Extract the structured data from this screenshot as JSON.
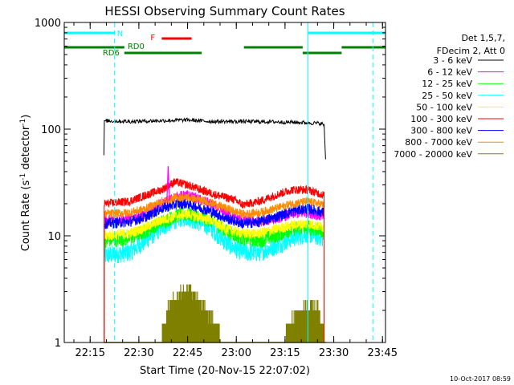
{
  "chart_data": {
    "type": "line",
    "title": "HESSI Observing Summary Count Rates",
    "xlabel": "Start Time (20-Nov-15 22:07:02)",
    "ylabel_main": "Count Rate (s",
    "ylabel_sup1": "-1",
    "ylabel_mid": " detector",
    "ylabel_sup2": "-1",
    "ylabel_end": ")",
    "y_scale": "log",
    "ylim": [
      1,
      1000
    ],
    "xlim_minutes": [
      0,
      98.9
    ],
    "x_ticks": [
      {
        "label": "22:15",
        "minute": 7.97
      },
      {
        "label": "22:30",
        "minute": 22.97
      },
      {
        "label": "22:45",
        "minute": 37.97
      },
      {
        "label": "23:00",
        "minute": 52.97
      },
      {
        "label": "23:15",
        "minute": 67.97
      },
      {
        "label": "23:30",
        "minute": 82.97
      },
      {
        "label": "23:45",
        "minute": 97.97
      }
    ],
    "y_ticks": [
      {
        "label": "1",
        "value": 1
      },
      {
        "label": "10",
        "value": 10
      },
      {
        "label": "100",
        "value": 100
      },
      {
        "label": "1000",
        "value": 1000
      }
    ],
    "legend": {
      "header": [
        "Det 1,5,7,",
        "FDecim 2, Att 0"
      ],
      "placement": "right",
      "entries": [
        {
          "label": "3 - 6 keV",
          "color": "#000000"
        },
        {
          "label": "6 - 12 keV",
          "color": "#ff00ff"
        },
        {
          "label": "12 - 25 keV",
          "color": "#00ff00"
        },
        {
          "label": "25 - 50 keV",
          "color": "#00ffff"
        },
        {
          "label": "50 - 100 keV",
          "color": "#ffff00"
        },
        {
          "label": "100 - 300 keV",
          "color": "#ff0000"
        },
        {
          "label": "300 - 800 keV",
          "color": "#0000ff"
        },
        {
          "label": "800 - 7000 keV",
          "color": "#ff8c00"
        },
        {
          "label": "7000 - 20000 keV",
          "color": "#808000"
        }
      ]
    },
    "night_boundaries_minutes": [
      {
        "minute": 15.5,
        "style": "dashed",
        "color": "#00ffff"
      },
      {
        "minute": 75.0,
        "style": "solid",
        "color": "#00ffff"
      },
      {
        "minute": 95.0,
        "style": "dashed",
        "color": "#00ffff"
      }
    ],
    "flag_bars": [
      {
        "label": "N",
        "color": "#00ffff",
        "level": 1,
        "segments": [
          [
            0,
            15.5
          ],
          [
            75.0,
            98.9
          ]
        ]
      },
      {
        "label": "F",
        "color": "#ff0000",
        "level": 2,
        "segments": [
          [
            30.0,
            39.2
          ]
        ]
      },
      {
        "label": "RD0",
        "color": "#008000",
        "level": 3,
        "segments": [
          [
            0,
            18.5
          ],
          [
            55.3,
            73.4
          ],
          [
            85.4,
            98.9
          ]
        ]
      },
      {
        "label": "RD6",
        "color": "#008000",
        "level": 4,
        "segments": [
          [
            18.5,
            42.3
          ],
          [
            73.4,
            85.4
          ]
        ]
      }
    ],
    "data_window_minutes": [
      12.2,
      80.5
    ],
    "series": [
      {
        "name": "3 - 6 keV",
        "color": "#000000",
        "points": [
          [
            12.2,
            57
          ],
          [
            12.3,
            120
          ],
          [
            20,
            118
          ],
          [
            30,
            120
          ],
          [
            38,
            122
          ],
          [
            45,
            118
          ],
          [
            55,
            118
          ],
          [
            65,
            117
          ],
          [
            75,
            115
          ],
          [
            79,
            113
          ],
          [
            80,
            110
          ],
          [
            80.5,
            48
          ]
        ]
      },
      {
        "name": "6 - 12 keV",
        "color": "#ff00ff",
        "points": [
          [
            12.3,
            14
          ],
          [
            20,
            14.5
          ],
          [
            25,
            16
          ],
          [
            30,
            20
          ],
          [
            34,
            23
          ],
          [
            38,
            24
          ],
          [
            45,
            20
          ],
          [
            50,
            16
          ],
          [
            55,
            14
          ],
          [
            60,
            13.5
          ],
          [
            65,
            14.5
          ],
          [
            70,
            16
          ],
          [
            75,
            16.5
          ],
          [
            80,
            15
          ]
        ]
      },
      {
        "name": "12 - 25 keV",
        "color": "#00ff00",
        "points": [
          [
            12.3,
            9
          ],
          [
            20,
            9.5
          ],
          [
            25,
            11
          ],
          [
            30,
            13.5
          ],
          [
            35,
            15.5
          ],
          [
            38,
            16
          ],
          [
            45,
            14
          ],
          [
            50,
            11
          ],
          [
            55,
            9.5
          ],
          [
            60,
            9
          ],
          [
            65,
            10
          ],
          [
            70,
            11.5
          ],
          [
            75,
            12
          ],
          [
            80,
            11
          ]
        ]
      },
      {
        "name": "25 - 50 keV",
        "color": "#00ffff",
        "points": [
          [
            12.3,
            6.5
          ],
          [
            20,
            7
          ],
          [
            25,
            9
          ],
          [
            30,
            12
          ],
          [
            35,
            14.5
          ],
          [
            38,
            15
          ],
          [
            45,
            12
          ],
          [
            50,
            8.5
          ],
          [
            55,
            7
          ],
          [
            60,
            7
          ],
          [
            65,
            8
          ],
          [
            70,
            9.5
          ],
          [
            75,
            10.5
          ],
          [
            80,
            9.5
          ]
        ]
      },
      {
        "name": "50 - 100 keV",
        "color": "#ffff00",
        "points": [
          [
            12.3,
            10
          ],
          [
            20,
            10.5
          ],
          [
            25,
            12
          ],
          [
            30,
            14
          ],
          [
            35,
            15.5
          ],
          [
            38,
            16
          ],
          [
            45,
            14
          ],
          [
            50,
            11.5
          ],
          [
            55,
            10.5
          ],
          [
            60,
            10.5
          ],
          [
            65,
            11.5
          ],
          [
            70,
            12.5
          ],
          [
            75,
            13
          ],
          [
            80,
            12
          ]
        ]
      },
      {
        "name": "100 - 300 keV",
        "color": "#ff0000",
        "points": [
          [
            12.3,
            20
          ],
          [
            20,
            21
          ],
          [
            25,
            24
          ],
          [
            30,
            27
          ],
          [
            34,
            32
          ],
          [
            38,
            30
          ],
          [
            42,
            27
          ],
          [
            47,
            24
          ],
          [
            52,
            22
          ],
          [
            55,
            19.5
          ],
          [
            60,
            21
          ],
          [
            65,
            24
          ],
          [
            70,
            27
          ],
          [
            75,
            27
          ],
          [
            80,
            24
          ]
        ]
      },
      {
        "name": "300 - 800 keV",
        "color": "#0000ff",
        "points": [
          [
            12.3,
            13
          ],
          [
            20,
            13.5
          ],
          [
            25,
            15
          ],
          [
            30,
            18
          ],
          [
            35,
            20
          ],
          [
            38,
            20
          ],
          [
            45,
            17
          ],
          [
            50,
            14.5
          ],
          [
            55,
            13
          ],
          [
            60,
            13.5
          ],
          [
            65,
            15
          ],
          [
            70,
            17
          ],
          [
            75,
            18
          ],
          [
            80,
            16.5
          ]
        ]
      },
      {
        "name": "800 - 7000 keV",
        "color": "#ff8c00",
        "points": [
          [
            12.3,
            16
          ],
          [
            20,
            16.5
          ],
          [
            25,
            18
          ],
          [
            30,
            21
          ],
          [
            35,
            23
          ],
          [
            38,
            23
          ],
          [
            45,
            20.5
          ],
          [
            50,
            18
          ],
          [
            55,
            16
          ],
          [
            60,
            16.5
          ],
          [
            65,
            18
          ],
          [
            70,
            20
          ],
          [
            75,
            21
          ],
          [
            80,
            19.5
          ]
        ]
      },
      {
        "name": "7000 - 20000 keV",
        "color": "#808000",
        "points": [
          [
            12.3,
            1
          ],
          [
            30,
            1
          ],
          [
            32,
            2
          ],
          [
            35,
            2.5
          ],
          [
            38,
            3
          ],
          [
            40,
            2.5
          ],
          [
            43,
            2
          ],
          [
            46,
            1.5
          ],
          [
            48,
            1
          ],
          [
            68,
            1
          ],
          [
            70,
            1.5
          ],
          [
            74,
            2
          ],
          [
            78,
            2
          ],
          [
            80,
            1
          ]
        ]
      }
    ],
    "spikes": [
      {
        "series": "6 - 12 keV",
        "minute": 32.0,
        "value": 45
      }
    ]
  },
  "footer": {
    "timestamp": "10-Oct-2017 08:59"
  }
}
